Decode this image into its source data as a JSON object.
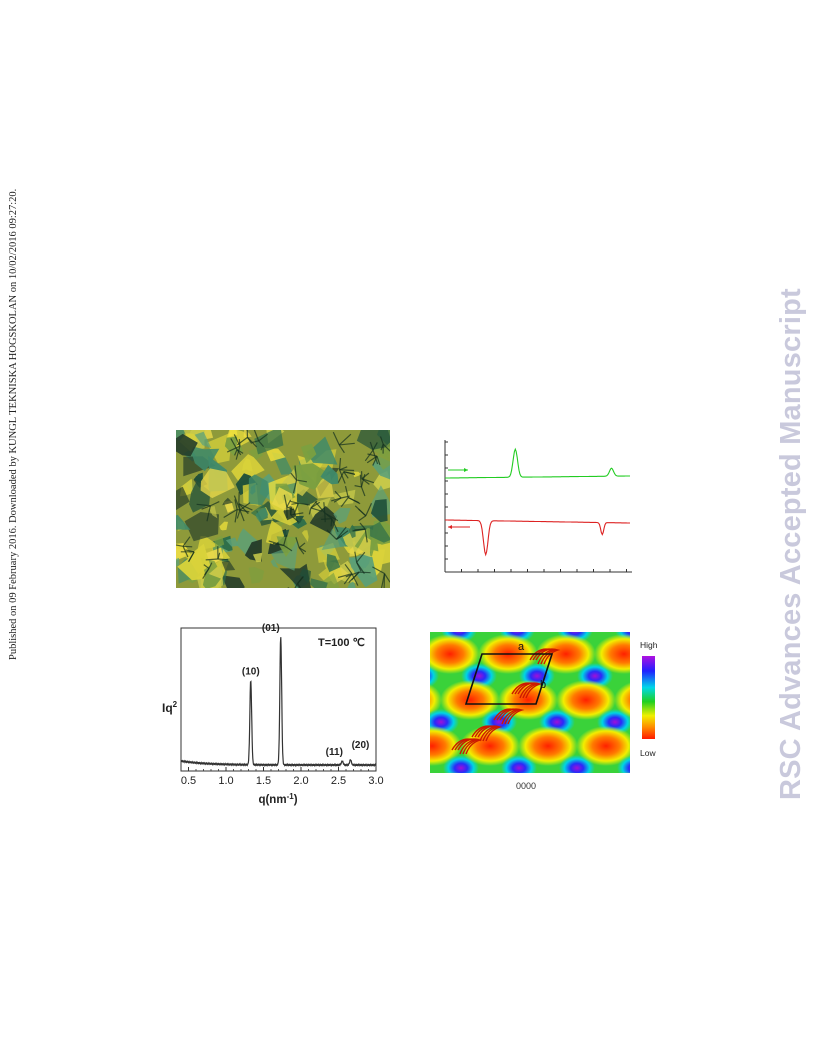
{
  "side_note": "Published on 09 February 2016. Downloaded by KUNGL TEKNISKA HOGSKOLAN on 10/02/2016 09:27:20.",
  "watermark": "RSC Advances Accepted Manuscript",
  "dsc_panel": {
    "series": [
      {
        "name": "",
        "color": "#22cc22",
        "direction": "heating",
        "peak_direction": "up"
      },
      {
        "name": "",
        "color": "#dd2222",
        "direction": "cooling",
        "peak_direction": "down"
      }
    ]
  },
  "saxs_panel": {
    "annotation": "T=100 ℃",
    "ylabel": "Iq",
    "ylabel_sup": "2",
    "xlabel": "q(nm",
    "xlabel_sup": "-1",
    "xlabel_tail": ")",
    "peak_labels": [
      "(10)",
      "(01)",
      "(11)",
      "(20)"
    ],
    "x_ticks": [
      "0.5",
      "1.0",
      "1.5",
      "2.0",
      "2.5",
      "3.0"
    ]
  },
  "density_panel": {
    "legend_high": "High",
    "legend_low": "Low",
    "lattice_a": "a",
    "lattice_b": "b",
    "caption": "0000"
  },
  "chart_data": [
    {
      "type": "line",
      "title": "",
      "xlabel": "",
      "ylabel": "",
      "series": [
        {
          "name": "",
          "peaks_x_fraction": [
            0.38,
            0.9
          ],
          "peak_direction": "up"
        },
        {
          "name": "",
          "peaks_x_fraction": [
            0.22,
            0.85
          ],
          "peak_direction": "down"
        }
      ]
    },
    {
      "type": "line",
      "title": "",
      "xlabel": "q(nm-1)",
      "ylabel": "Iq2",
      "xlim": [
        0.4,
        3.0
      ],
      "annotation": "T=100 ℃",
      "series": [
        {
          "name": "",
          "peaks": [
            {
              "label": "(10)",
              "q": 1.33,
              "relative_intensity": 0.66
            },
            {
              "label": "(01)",
              "q": 1.73,
              "relative_intensity": 1.0
            },
            {
              "label": "(11)",
              "q": 2.55,
              "relative_intensity": 0.03
            },
            {
              "label": "(20)",
              "q": 2.66,
              "relative_intensity": 0.04
            }
          ]
        }
      ]
    }
  ]
}
